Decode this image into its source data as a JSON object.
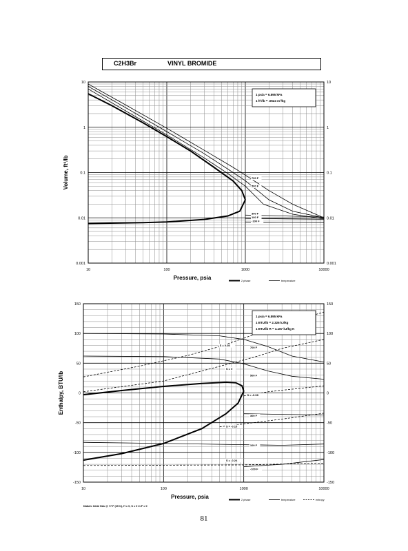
{
  "header": {
    "formula": "C2H3Br",
    "name": "VINYL BROMIDE"
  },
  "page_number": "81",
  "colors": {
    "ink": "#000000",
    "grid": "#8a8a8a",
    "background": "#ffffff"
  },
  "chart_data": [
    {
      "type": "line",
      "title": "",
      "xlabel": "Pressure,  psia",
      "ylabel": "Volume, ft^3/lb",
      "x_scale": "log",
      "y_scale": "log",
      "xlim": [
        10,
        10000
      ],
      "ylim": [
        0.001,
        10
      ],
      "x_ticks": [
        "10",
        "100",
        "1000",
        "10000"
      ],
      "y_ticks_left": [
        "10",
        "1",
        "0.1",
        "0.01",
        "0.001"
      ],
      "y_ticks_right": [
        "10",
        "1",
        "0.1",
        "0.01",
        "0.001"
      ],
      "grid": true,
      "notes": [
        "1 psia  =  6.895 kPa",
        "1 ft^3/lb  =  .0624 m^3/kg"
      ],
      "legend": [
        "2 phase",
        "temperature"
      ],
      "series": [
        {
          "kind": "saturation-vapor",
          "points": [
            [
              10,
              5.5
            ],
            [
              20,
              3.0
            ],
            [
              50,
              1.25
            ],
            [
              100,
              0.62
            ],
            [
              200,
              0.3
            ],
            [
              400,
              0.13
            ],
            [
              700,
              0.065
            ],
            [
              900,
              0.04
            ],
            [
              1000,
              0.025
            ]
          ]
        },
        {
          "kind": "saturation-liquid",
          "points": [
            [
              10,
              0.0075
            ],
            [
              50,
              0.0078
            ],
            [
              100,
              0.0081
            ],
            [
              300,
              0.0092
            ],
            [
              600,
              0.011
            ],
            [
              850,
              0.014
            ],
            [
              1000,
              0.025
            ]
          ]
        },
        {
          "kind": "isotherm",
          "label": "700 F",
          "points": [
            [
              10,
              9.0
            ],
            [
              30,
              3.1
            ],
            [
              100,
              0.95
            ],
            [
              300,
              0.31
            ],
            [
              700,
              0.13
            ],
            [
              1000,
              0.088
            ],
            [
              2000,
              0.04
            ],
            [
              4000,
              0.02
            ],
            [
              10000,
              0.01
            ]
          ]
        },
        {
          "kind": "isotherm",
          "label": "500 F",
          "points": [
            [
              10,
              8.0
            ],
            [
              30,
              2.7
            ],
            [
              100,
              0.8
            ],
            [
              300,
              0.26
            ],
            [
              700,
              0.1
            ],
            [
              1000,
              0.066
            ],
            [
              2000,
              0.025
            ],
            [
              4000,
              0.014
            ],
            [
              10000,
              0.01
            ]
          ]
        },
        {
          "kind": "isotherm",
          "label": "",
          "points": [
            [
              10,
              7.0
            ],
            [
              30,
              2.3
            ],
            [
              100,
              0.68
            ],
            [
              300,
              0.21
            ],
            [
              600,
              0.095
            ],
            [
              1000,
              0.05
            ],
            [
              1700,
              0.02
            ],
            [
              4000,
              0.012
            ],
            [
              10000,
              0.0095
            ]
          ]
        },
        {
          "kind": "isotherm",
          "label": "300 F",
          "points": [
            [
              1000,
              0.0115
            ],
            [
              3000,
              0.011
            ],
            [
              10000,
              0.0104
            ]
          ]
        },
        {
          "kind": "isotherm",
          "label": "100 F",
          "points": [
            [
              1000,
              0.0097
            ],
            [
              3000,
              0.0095
            ],
            [
              10000,
              0.0093
            ]
          ]
        },
        {
          "kind": "isotherm",
          "label": "-100 F",
          "points": [
            [
              1000,
              0.0081
            ],
            [
              3000,
              0.008
            ],
            [
              10000,
              0.0079
            ]
          ]
        }
      ],
      "curve_labels": [
        {
          "text": "700 F",
          "x": 1200,
          "y": 0.072
        },
        {
          "text": "500 F",
          "x": 1200,
          "y": 0.048
        },
        {
          "text": "300 F",
          "x": 1200,
          "y": 0.0118
        },
        {
          "text": "100 F",
          "x": 1200,
          "y": 0.0097
        },
        {
          "text": "-100 F",
          "x": 1200,
          "y": 0.0081
        }
      ]
    },
    {
      "type": "line",
      "title": "",
      "xlabel": "Pressure,  psia",
      "ylabel": "Enthalpy, BTU/lb",
      "x_scale": "log",
      "y_scale": "linear",
      "xlim": [
        10,
        10000
      ],
      "ylim": [
        -150,
        150
      ],
      "x_ticks": [
        "10",
        "100",
        "1000",
        "10000"
      ],
      "y_ticks_left": [
        "150",
        "100",
        "50",
        "0",
        "-50",
        "-100",
        "-150"
      ],
      "y_ticks_right": [
        "150",
        "100",
        "50",
        "0",
        "-50",
        "-100",
        "-150"
      ],
      "grid": true,
      "notes": [
        "1 psia  =  6.895 kPa",
        "1 BTU/lb  =  2.326 kJ/kg",
        "1 BTU/lb R  =  4.187 kJ/kg K"
      ],
      "footnote": "Datum: Ideal Gas @ 77 F (25 C),  H = 0,  S = 0 in F = 0",
      "legend": [
        "2 phase",
        "temperature",
        "entropy"
      ],
      "series": [
        {
          "kind": "saturation-vapor",
          "points": [
            [
              10,
              -3
            ],
            [
              30,
              4
            ],
            [
              100,
              11
            ],
            [
              300,
              16
            ],
            [
              600,
              18
            ],
            [
              800,
              17
            ],
            [
              950,
              12
            ],
            [
              1000,
              3
            ]
          ]
        },
        {
          "kind": "saturation-liquid",
          "points": [
            [
              10,
              -113
            ],
            [
              30,
              -102
            ],
            [
              100,
              -85
            ],
            [
              300,
              -60
            ],
            [
              600,
              -35
            ],
            [
              850,
              -17
            ],
            [
              1000,
              3
            ]
          ]
        },
        {
          "kind": "isotherm",
          "label": "700 F",
          "points": [
            [
              10,
              100
            ],
            [
              100,
              99
            ],
            [
              500,
              96
            ],
            [
              1000,
              90
            ],
            [
              2000,
              78
            ],
            [
              4000,
              62
            ],
            [
              10000,
              52
            ]
          ]
        },
        {
          "kind": "isotherm",
          "label": "500 F",
          "points": [
            [
              10,
              62
            ],
            [
              100,
              61
            ],
            [
              500,
              57
            ],
            [
              1000,
              49
            ],
            [
              2000,
              37
            ],
            [
              4000,
              28
            ],
            [
              10000,
              23
            ]
          ]
        },
        {
          "kind": "isotherm",
          "label": "300 F",
          "points": [
            [
              1000,
              -35
            ],
            [
              3000,
              -36
            ],
            [
              10000,
              -37
            ]
          ]
        },
        {
          "kind": "isotherm",
          "label": "100 F",
          "points": [
            [
              10,
              -83
            ],
            [
              1000,
              -87
            ],
            [
              3000,
              -88
            ],
            [
              10000,
              -86
            ]
          ]
        },
        {
          "kind": "isotherm",
          "label": "-100 F",
          "points": [
            [
              1000,
              -124
            ],
            [
              3000,
              -120
            ],
            [
              10000,
              -112
            ]
          ]
        },
        {
          "kind": "entropy",
          "label": "S = 0.05",
          "points": [
            [
              10,
              27
            ],
            [
              50,
              45
            ],
            [
              200,
              63
            ],
            [
              500,
              78
            ],
            [
              1000,
              92
            ],
            [
              3000,
              115
            ],
            [
              7000,
              130
            ],
            [
              10000,
              136
            ]
          ]
        },
        {
          "kind": "entropy",
          "label": "S = 0",
          "points": [
            [
              10,
              2
            ],
            [
              100,
              20
            ],
            [
              300,
              37
            ],
            [
              800,
              52
            ],
            [
              1500,
              62
            ],
            [
              3000,
              75
            ],
            [
              10000,
              90
            ]
          ]
        },
        {
          "kind": "entropy",
          "label": "S = -0.08",
          "points": [
            [
              1000,
              -5
            ],
            [
              2000,
              2
            ],
            [
              10000,
              12
            ]
          ]
        },
        {
          "kind": "entropy",
          "label": "S = -0.15",
          "points": [
            [
              500,
              -57
            ],
            [
              1000,
              -52
            ],
            [
              3000,
              -44
            ],
            [
              10000,
              -34
            ]
          ]
        },
        {
          "kind": "entropy",
          "label": "S = -0.24",
          "points": [
            [
              10,
              -122
            ],
            [
              1000,
              -121
            ],
            [
              10000,
              -118
            ]
          ]
        }
      ],
      "curve_labels": [
        {
          "text": "S = 0.05",
          "x": 500,
          "y": 78
        },
        {
          "text": "700 F",
          "x": 1200,
          "y": 75
        },
        {
          "text": "S = 0",
          "x": 600,
          "y": 39
        },
        {
          "text": "500 F",
          "x": 1200,
          "y": 28
        },
        {
          "text": "S = -0.08",
          "x": 1100,
          "y": -5
        },
        {
          "text": "300 F",
          "x": 1200,
          "y": -40
        },
        {
          "text": "S = -0.15",
          "x": 600,
          "y": -58
        },
        {
          "text": "100 F",
          "x": 1200,
          "y": -90
        },
        {
          "text": "S = -0.24",
          "x": 600,
          "y": -115
        },
        {
          "text": "-100 F",
          "x": 1200,
          "y": -130
        }
      ]
    }
  ]
}
